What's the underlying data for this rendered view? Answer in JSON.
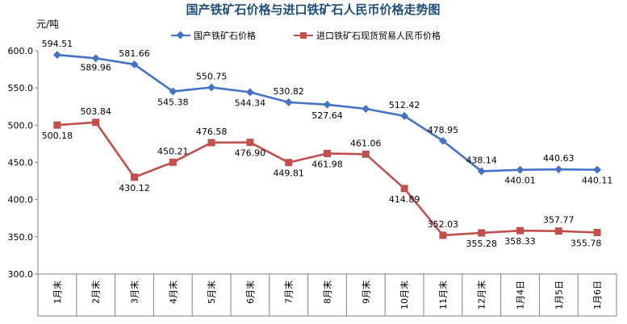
{
  "chart_data": {
    "type": "line",
    "title": "国产铁矿石价格与进口铁矿石人民币价格走势图",
    "y_unit": "元/吨",
    "categories": [
      "1月末",
      "2月末",
      "3月末",
      "4月末",
      "5月末",
      "6月末",
      "7月末",
      "8月末",
      "9月末",
      "10月末",
      "11月末",
      "12月末",
      "1月4日",
      "1月5日",
      "1月6日"
    ],
    "ylim": [
      300,
      600
    ],
    "yticks": [
      "300.0",
      "350.0",
      "400.0",
      "450.0",
      "500.0",
      "550.0",
      "600.0"
    ],
    "grid": false,
    "legend_position": "top",
    "series": [
      {
        "name": "国产铁矿石价格",
        "color": "#4472c4",
        "marker": "diamond",
        "values": [
          594.51,
          589.96,
          581.66,
          545.38,
          550.75,
          544.34,
          530.82,
          527.64,
          522.0,
          512.42,
          478.95,
          438.14,
          440.01,
          440.63,
          440.11
        ],
        "labels": [
          "594.51",
          "589.96",
          "581.66",
          "545.38",
          "550.75",
          "544.34",
          "530.82",
          "527.64",
          "",
          "512.42",
          "478.95",
          "438.14",
          "440.01",
          "440.63",
          "440.11"
        ]
      },
      {
        "name": "进口铁矿石现货贸易人民币价格",
        "color": "#c0504d",
        "marker": "square",
        "values": [
          500.18,
          503.84,
          430.12,
          450.21,
          476.58,
          476.9,
          449.81,
          461.98,
          461.06,
          414.89,
          352.03,
          355.28,
          358.33,
          357.77,
          355.78
        ],
        "labels": [
          "500.18",
          "503.84",
          "430.12",
          "450.21",
          "476.58",
          "476.90",
          "449.81",
          "461.98",
          "461.06",
          "414.89",
          "352.03",
          "355.28",
          "358.33",
          "357.77",
          "355.78"
        ]
      }
    ]
  }
}
